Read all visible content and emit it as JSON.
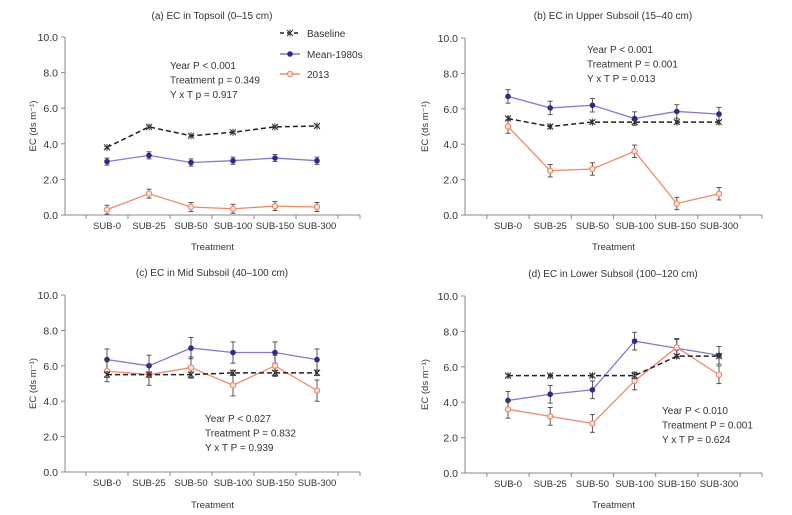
{
  "chart_data": {
    "legend": {
      "placement": "top-right of panel (a)",
      "entries": [
        {
          "key": "baseline",
          "name": "Baseline",
          "color": "#222222",
          "style": "dashed",
          "marker": "asterisk"
        },
        {
          "key": "mean1980s",
          "name": "Mean-1980s",
          "color": "#7f7cd4",
          "marker_color": "#2e2a8f",
          "style": "solid",
          "marker": "circle"
        },
        {
          "key": "y2013",
          "name": "2013",
          "color": "#f0896b",
          "style": "solid",
          "marker": "open-circle"
        }
      ]
    },
    "panels": [
      {
        "type": "line",
        "title": "(a) EC in Topsoil (0–15 cm)",
        "xlabel": "Treatment",
        "ylabel": "EC (ds m⁻¹)",
        "ylim": [
          0,
          10
        ],
        "yticks": [
          "0.0",
          "2.0",
          "4.0",
          "6.0",
          "8.0",
          "10.0"
        ],
        "categories": [
          "SUB-0",
          "SUB-25",
          "SUB-50",
          "SUB-100",
          "SUB-150",
          "SUB-300"
        ],
        "annotation": [
          "Year P < 0.001",
          "Treatment p = 0.349",
          "Y x T p = 0.917"
        ],
        "series": {
          "baseline": {
            "values": [
              3.8,
              4.95,
              4.45,
              4.65,
              4.95,
              5.0
            ],
            "errors": [
              0.05,
              0.05,
              0.05,
              0.05,
              0.05,
              0.05
            ]
          },
          "mean1980s": {
            "values": [
              3.0,
              3.35,
              2.95,
              3.05,
              3.2,
              3.05
            ],
            "errors": [
              0.2,
              0.2,
              0.2,
              0.2,
              0.2,
              0.2
            ]
          },
          "y2013": {
            "values": [
              0.3,
              1.2,
              0.45,
              0.35,
              0.5,
              0.45
            ],
            "errors": [
              0.25,
              0.25,
              0.25,
              0.25,
              0.25,
              0.25
            ]
          }
        }
      },
      {
        "type": "line",
        "title": "(b) EC in Upper Subsoil (15–40 cm)",
        "xlabel": "Treatment",
        "ylabel": "EC (ds m⁻¹)",
        "ylim": [
          0,
          10
        ],
        "yticks": [
          "0.0",
          "2.0",
          "4.0",
          "6.0",
          "8.0",
          "10.0"
        ],
        "categories": [
          "SUB-0",
          "SUB-25",
          "SUB-50",
          "SUB-100",
          "SUB-150",
          "SUB-300"
        ],
        "annotation": [
          "Year P < 0.001",
          "Treatment P = 0.001",
          "Y x T P = 0.013"
        ],
        "series": {
          "baseline": {
            "values": [
              5.45,
              5.0,
              5.25,
              5.25,
              5.25,
              5.25
            ],
            "errors": [
              0.1,
              0.1,
              0.1,
              0.1,
              0.1,
              0.1
            ]
          },
          "mean1980s": {
            "values": [
              6.7,
              6.05,
              6.2,
              5.45,
              5.85,
              5.7
            ],
            "errors": [
              0.38,
              0.38,
              0.38,
              0.38,
              0.38,
              0.38
            ]
          },
          "y2013": {
            "values": [
              5.0,
              2.5,
              2.6,
              3.6,
              0.65,
              1.2
            ],
            "errors": [
              0.38,
              0.35,
              0.35,
              0.35,
              0.35,
              0.35
            ]
          }
        }
      },
      {
        "type": "line",
        "title": "(c) EC in Mid Subsoil (40–100 cm)",
        "xlabel": "Treatment",
        "ylabel": "EC (ds m⁻¹)",
        "ylim": [
          0,
          10
        ],
        "yticks": [
          "0.0",
          "2.0",
          "4.0",
          "6.0",
          "8.0",
          "10.0"
        ],
        "categories": [
          "SUB-0",
          "SUB-25",
          "SUB-50",
          "SUB-100",
          "SUB-150",
          "SUB-300"
        ],
        "annotation": [
          "Year P < 0.027",
          "Treatment P = 0.832",
          "Y x T P = 0.939"
        ],
        "series": {
          "baseline": {
            "values": [
              5.5,
              5.5,
              5.5,
              5.6,
              5.6,
              5.6
            ],
            "errors": [
              0.15,
              0.15,
              0.15,
              0.15,
              0.15,
              0.15
            ]
          },
          "mean1980s": {
            "values": [
              6.35,
              6.0,
              7.0,
              6.75,
              6.75,
              6.35
            ],
            "errors": [
              0.6,
              0.6,
              0.6,
              0.6,
              0.6,
              0.6
            ]
          },
          "y2013": {
            "values": [
              5.7,
              5.5,
              5.9,
              4.9,
              6.0,
              4.6
            ],
            "errors": [
              0.6,
              0.6,
              0.6,
              0.6,
              0.6,
              0.6
            ]
          }
        }
      },
      {
        "type": "line",
        "title": "(d) EC in Lower Subsoil (100–120 cm)",
        "xlabel": "Treatment",
        "ylabel": "EC (ds m⁻¹)",
        "ylim": [
          0,
          10
        ],
        "yticks": [
          "0.0",
          "2.0",
          "4.0",
          "6.0",
          "8.0",
          "10.0"
        ],
        "categories": [
          "SUB-0",
          "SUB-25",
          "SUB-50",
          "SUB-100",
          "SUB-150",
          "SUB-300"
        ],
        "annotation": [
          "Year P < 0.010",
          "Treatment P = 0.001",
          "Y x T P = 0.624"
        ],
        "series": {
          "baseline": {
            "values": [
              5.5,
              5.5,
              5.5,
              5.5,
              6.6,
              6.6
            ],
            "errors": [
              0.08,
              0.08,
              0.08,
              0.15,
              0.1,
              0.1
            ]
          },
          "mean1980s": {
            "values": [
              4.1,
              4.45,
              4.7,
              7.45,
              7.05,
              6.65
            ],
            "errors": [
              0.5,
              0.5,
              0.5,
              0.5,
              0.5,
              0.5
            ]
          },
          "y2013": {
            "values": [
              3.6,
              3.2,
              2.8,
              5.2,
              7.1,
              5.55
            ],
            "errors": [
              0.5,
              0.5,
              0.5,
              0.5,
              0.5,
              0.5
            ]
          }
        }
      }
    ]
  }
}
